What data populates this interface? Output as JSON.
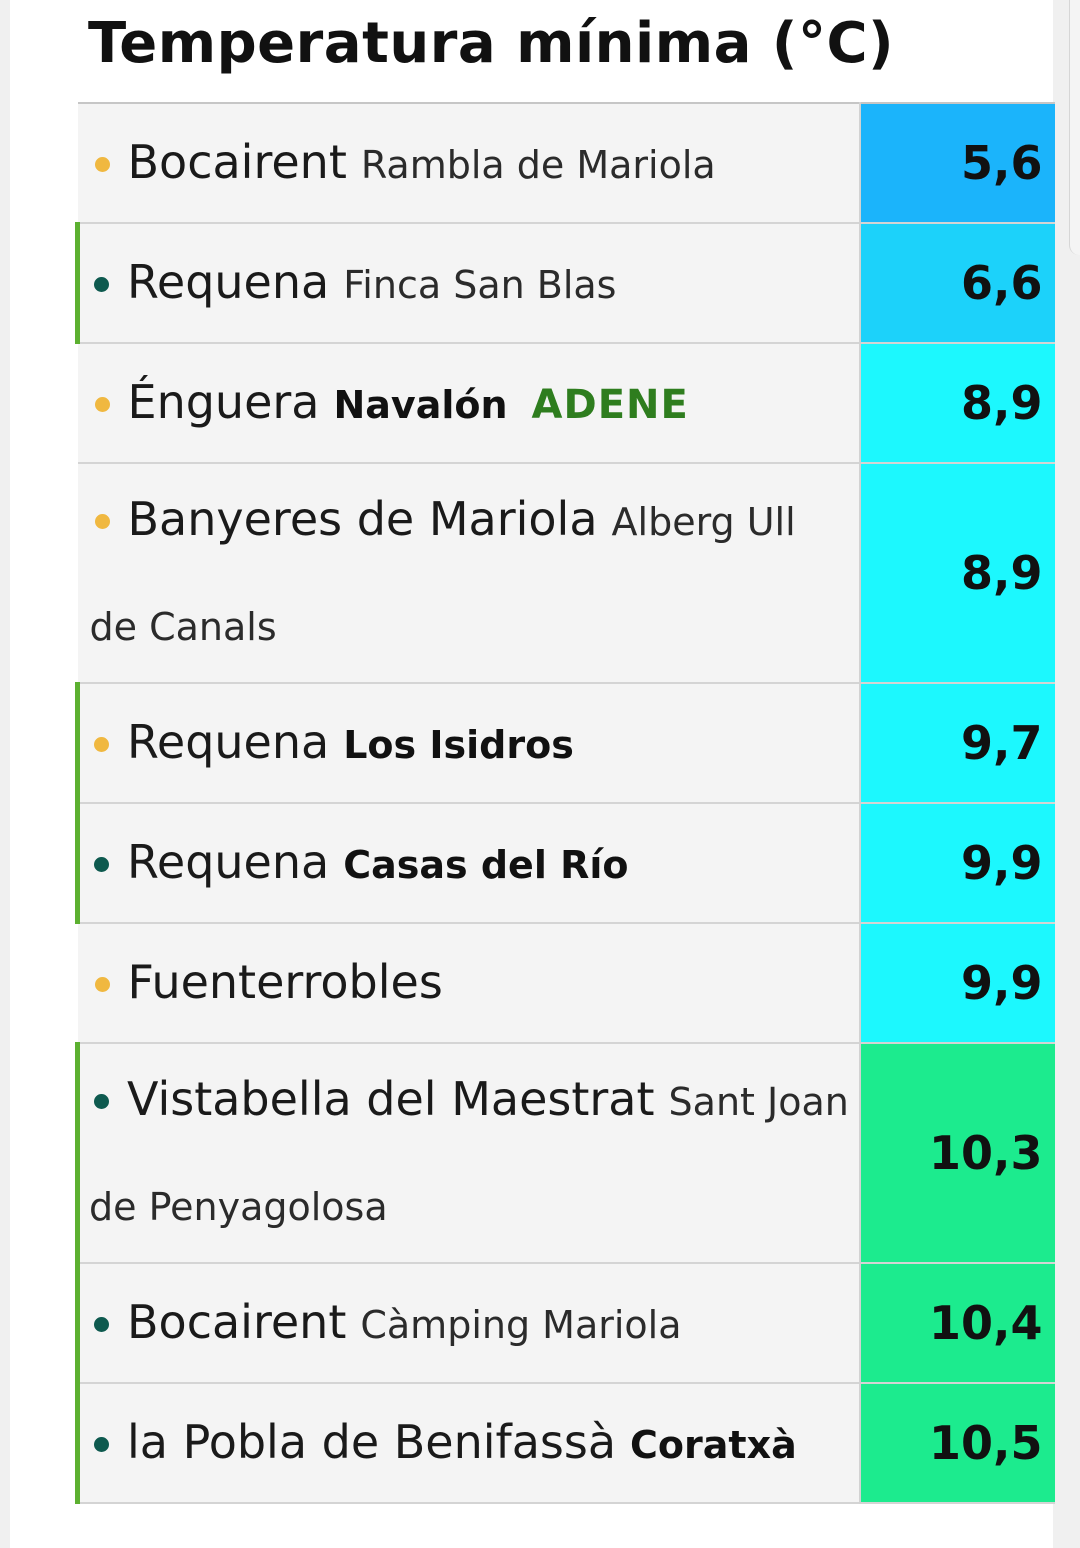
{
  "title": "Temperatura mínima (°C)",
  "colors": {
    "dot_orange": "#f0b840",
    "dot_teal": "#0e5a4f",
    "val_blue": "#1bb4fb",
    "val_lightblue": "#1cd2fa",
    "val_cyan": "#1cf8fe",
    "val_green": "#1ceb8e",
    "row_green_edge": "#5cb030"
  },
  "rows": [
    {
      "city": "Bocairent",
      "site": "Rambla de Mariola",
      "site_bold": false,
      "tag": "",
      "value": "5,6",
      "dot": "orange",
      "color": "val_blue",
      "green_edge": false,
      "two_line": false
    },
    {
      "city": "Requena",
      "site": "Finca San Blas",
      "site_bold": false,
      "tag": "",
      "value": "6,6",
      "dot": "teal",
      "color": "val_lightblue",
      "green_edge": true,
      "two_line": false
    },
    {
      "city": "Énguera",
      "site": "Navalón",
      "site_bold": true,
      "tag": "ADENE",
      "value": "8,9",
      "dot": "orange",
      "color": "val_cyan",
      "green_edge": false,
      "two_line": false
    },
    {
      "city": "Banyeres de Mariola",
      "site": "Alberg Ull de Canals",
      "site_bold": false,
      "tag": "",
      "value": "8,9",
      "dot": "orange",
      "color": "val_cyan",
      "green_edge": false,
      "two_line": true
    },
    {
      "city": "Requena",
      "site": "Los Isidros",
      "site_bold": true,
      "tag": "",
      "value": "9,7",
      "dot": "orange",
      "color": "val_cyan",
      "green_edge": true,
      "two_line": false
    },
    {
      "city": "Requena",
      "site": "Casas del Río",
      "site_bold": true,
      "tag": "",
      "value": "9,9",
      "dot": "teal",
      "color": "val_cyan",
      "green_edge": true,
      "two_line": false
    },
    {
      "city": "Fuenterrobles",
      "site": "",
      "site_bold": false,
      "tag": "",
      "value": "9,9",
      "dot": "orange",
      "color": "val_cyan",
      "green_edge": false,
      "two_line": false
    },
    {
      "city": "Vistabella del Maestrat",
      "site": "Sant Joan de Penyagolosa",
      "site_bold": false,
      "tag": "",
      "value": "10,3",
      "dot": "teal",
      "color": "val_green",
      "green_edge": true,
      "two_line": true
    },
    {
      "city": "Bocairent",
      "site": "Càmping Mariola",
      "site_bold": false,
      "tag": "",
      "value": "10,4",
      "dot": "teal",
      "color": "val_green",
      "green_edge": true,
      "two_line": false
    },
    {
      "city": "la Pobla de Benifassà",
      "site": "Coratxà",
      "site_bold": true,
      "tag": "",
      "value": "10,5",
      "dot": "teal",
      "color": "val_green",
      "green_edge": true,
      "two_line": false
    }
  ]
}
